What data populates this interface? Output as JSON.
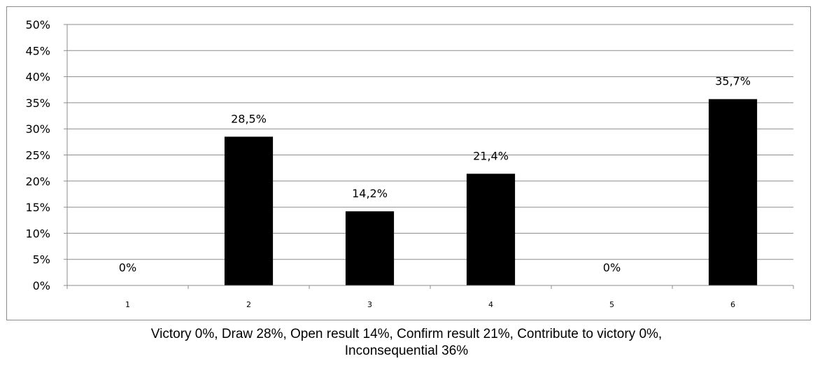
{
  "chart_data": {
    "type": "bar",
    "categories": [
      "1",
      "2",
      "3",
      "4",
      "5",
      "6"
    ],
    "values": [
      0,
      28.5,
      14.2,
      21.4,
      0,
      35.7
    ],
    "data_labels": [
      "0%",
      "28,5%",
      "14,2%",
      "21,4%",
      "0%",
      "35,7%"
    ],
    "y_ticks": [
      "0%",
      "5%",
      "10%",
      "15%",
      "20%",
      "25%",
      "30%",
      "35%",
      "40%",
      "45%",
      "50%"
    ],
    "ylim": [
      0,
      50
    ],
    "y_step": 5,
    "grid": true,
    "legend": "none",
    "bar_color": "#000000",
    "grid_color": "#8c8c8c"
  },
  "caption": {
    "line1": "Victory 0%, Draw 28%, Open result 14%, Confirm result 21%, Contribute to victory 0%,",
    "line2": "Inconsequential 36%"
  }
}
